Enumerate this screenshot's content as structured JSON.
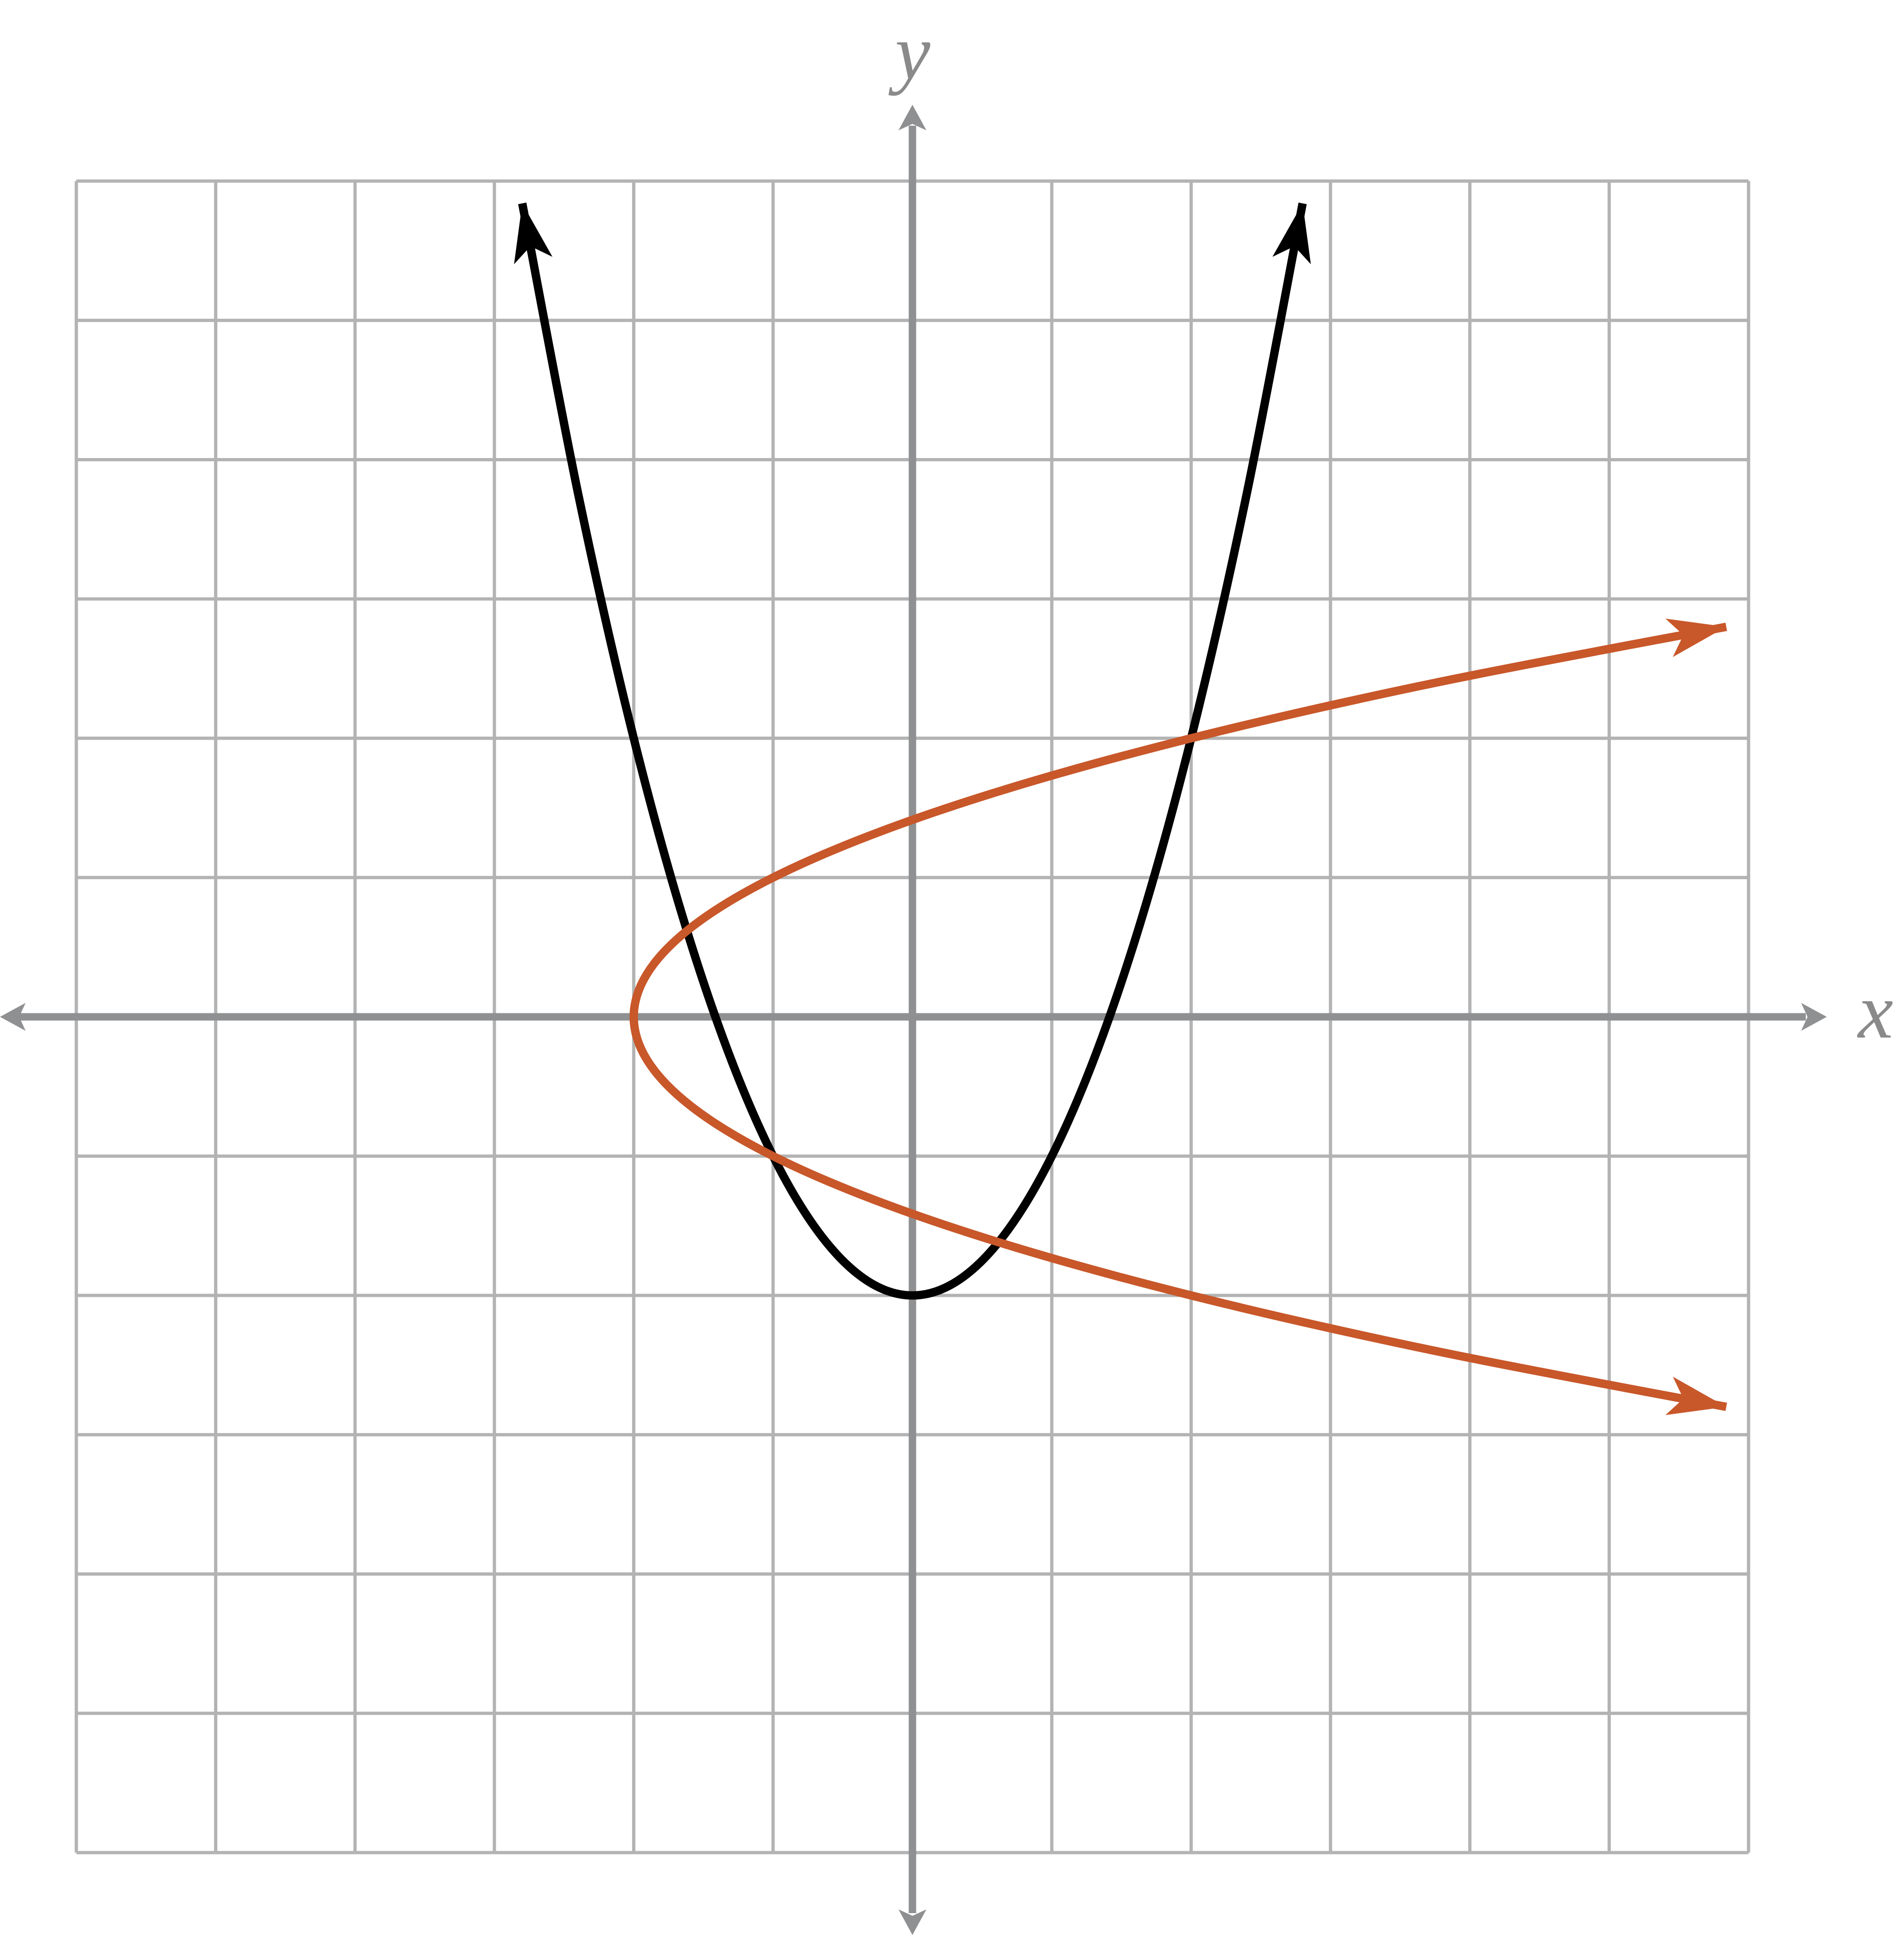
{
  "chart_data": {
    "type": "line",
    "x_label": "x",
    "y_label": "y",
    "xlim": [
      -6,
      6
    ],
    "ylim": [
      -6,
      6
    ],
    "xticks": [
      -6,
      -5,
      -4,
      -3,
      -2,
      -1,
      0,
      1,
      2,
      3,
      4,
      5,
      6
    ],
    "yticks": [
      -6,
      -5,
      -4,
      -3,
      -2,
      -1,
      0,
      1,
      2,
      3,
      4,
      5,
      6
    ],
    "grid": true,
    "series": [
      {
        "color": "#000000",
        "x": [
          -2.8,
          -2.4,
          -2,
          -1.6,
          -1.2,
          -0.8,
          -0.4,
          0,
          0.4,
          0.8,
          1.2,
          1.6,
          2,
          2.4,
          2.8
        ],
        "values": [
          5.84,
          3.76,
          2,
          0.56,
          -0.56,
          -1.36,
          -1.84,
          -2,
          -1.84,
          -1.36,
          -0.56,
          0.56,
          2,
          3.76,
          5.84
        ]
      },
      {
        "color": "#c8572a",
        "x": [
          5.84,
          3.76,
          2,
          0.56,
          -0.56,
          -1.36,
          -1.84,
          -2,
          -1.84,
          -1.36,
          -0.56,
          0.56,
          2,
          3.76,
          5.84
        ],
        "values": [
          2.8,
          2.4,
          2,
          1.6,
          1.2,
          0.8,
          0.4,
          0,
          -0.4,
          -0.8,
          -1.2,
          -1.6,
          -2,
          -2.4,
          -2.8
        ]
      }
    ]
  }
}
